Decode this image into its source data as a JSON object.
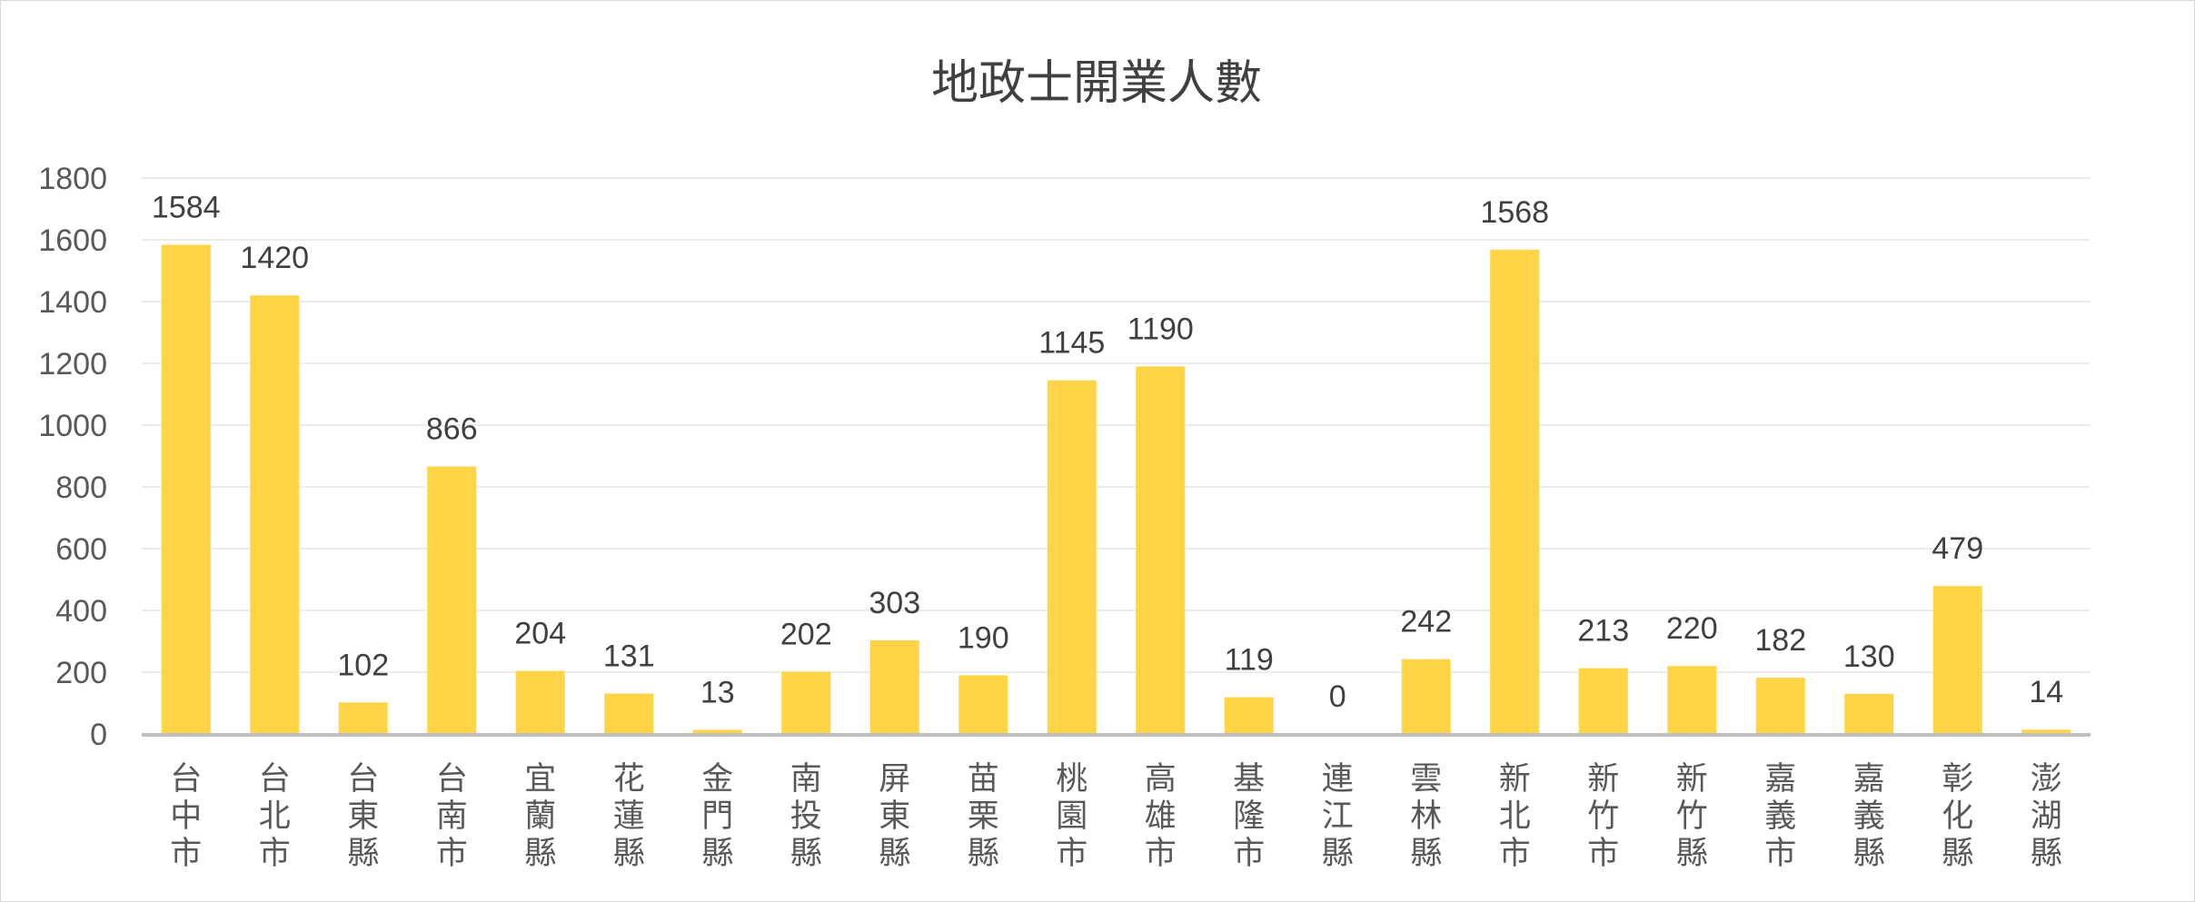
{
  "chart_data": {
    "type": "bar",
    "title": "地政士開業人數",
    "categories": [
      "台中市",
      "台北市",
      "台東縣",
      "台南市",
      "宜蘭縣",
      "花蓮縣",
      "金門縣",
      "南投縣",
      "屏東縣",
      "苗栗縣",
      "桃園市",
      "高雄市",
      "基隆市",
      "連江縣",
      "雲林縣",
      "新北市",
      "新竹市",
      "新竹縣",
      "嘉義市",
      "嘉義縣",
      "彰化縣",
      "澎湖縣"
    ],
    "values": [
      1584,
      1420,
      102,
      866,
      204,
      131,
      13,
      202,
      303,
      190,
      1145,
      1190,
      119,
      0,
      242,
      1568,
      213,
      220,
      182,
      130,
      479,
      14
    ],
    "ylim": [
      0,
      1800
    ],
    "yticks": [
      "0",
      "200",
      "400",
      "600",
      "800",
      "1000",
      "1200",
      "1400",
      "1600",
      "1800"
    ],
    "data_labels": [
      "1584",
      "1420",
      "102",
      "866",
      "204",
      "131",
      "13",
      "202",
      "303",
      "190",
      "1145",
      "1190",
      "119",
      "0",
      "242",
      "1568",
      "213",
      "220",
      "182",
      "130",
      "479",
      "14"
    ],
    "grid": true,
    "legend": "none",
    "bar_color": "#FFD447"
  }
}
